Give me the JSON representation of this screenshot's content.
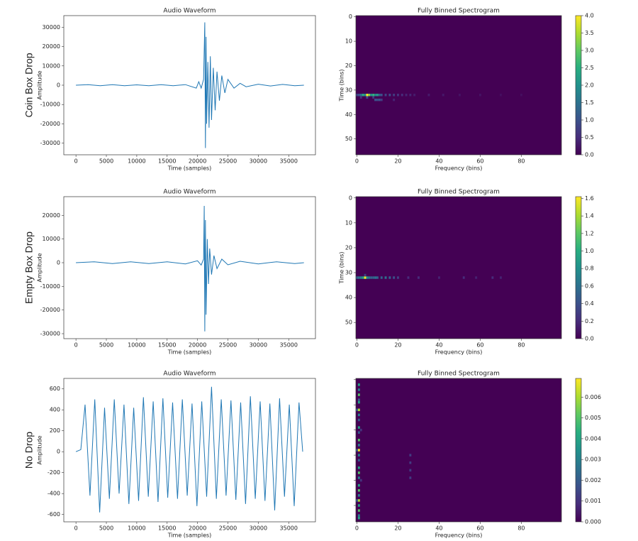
{
  "row_labels": [
    "Coin Box Drop",
    "Empty Box Drop",
    "No Drop"
  ],
  "chart_data": [
    {
      "type": "line",
      "title": "Audio Waveform",
      "xlabel": "Time (samples)",
      "ylabel": "Amplitude",
      "color": "#1f77b4",
      "x": [
        0,
        2000,
        4000,
        6000,
        8000,
        10000,
        12000,
        14000,
        16000,
        18000,
        19800,
        20200,
        20600,
        21000,
        21200,
        21300,
        21400,
        21500,
        21700,
        21900,
        22100,
        22300,
        22600,
        22900,
        23200,
        23600,
        24000,
        24500,
        25000,
        26000,
        27000,
        28000,
        30000,
        32000,
        34000,
        36000,
        37500
      ],
      "values": [
        0,
        300,
        -300,
        250,
        -300,
        200,
        -300,
        300,
        -250,
        300,
        -1500,
        1800,
        -1500,
        3000,
        32500,
        -32500,
        25000,
        -20000,
        12000,
        -22000,
        15000,
        -18000,
        9000,
        -13000,
        7000,
        -8000,
        5000,
        -4000,
        3000,
        -1500,
        1000,
        -800,
        500,
        -400,
        400,
        -300,
        0
      ],
      "xlim": [
        -2000,
        39400
      ],
      "ylim": [
        -36000,
        36000
      ],
      "xticks": [
        0,
        5000,
        10000,
        15000,
        20000,
        25000,
        30000,
        35000
      ],
      "yticks": [
        -30000,
        -20000,
        -10000,
        0,
        10000,
        20000,
        30000
      ]
    },
    {
      "type": "heatmap",
      "title": "Fully Binned Spectrogram",
      "xlabel": "Frequency (bins)",
      "ylabel": "Time (bins)",
      "colormap": "viridis",
      "x": [
        0,
        1,
        2,
        3,
        4,
        5,
        6,
        7,
        8,
        9,
        10,
        11,
        12,
        14,
        16,
        18,
        20,
        22,
        24,
        26,
        28,
        35,
        42,
        50,
        60,
        70,
        80,
        2,
        5,
        8,
        9,
        10,
        11,
        12,
        18
      ],
      "y": [
        32,
        32,
        32,
        32,
        32,
        32,
        32,
        32,
        32,
        32,
        32,
        32,
        32,
        32,
        32,
        32,
        32,
        32,
        32,
        32,
        32,
        32,
        32,
        32,
        32,
        32,
        32,
        33,
        33,
        33,
        34,
        34,
        34,
        34,
        34
      ],
      "values": [
        0.8,
        1.0,
        1.5,
        2.5,
        1.8,
        4.0,
        3.2,
        2.0,
        2.6,
        1.8,
        2.2,
        1.2,
        1.0,
        0.8,
        0.9,
        0.7,
        0.6,
        0.5,
        0.4,
        0.4,
        0.3,
        0.3,
        0.25,
        0.2,
        0.2,
        0.15,
        0.15,
        0.6,
        1.0,
        0.7,
        1.0,
        0.9,
        1.0,
        0.7,
        0.4
      ],
      "xlim": [
        -0.5,
        99.5
      ],
      "ylim": [
        56.5,
        -0.5
      ],
      "xticks": [
        0,
        20,
        40,
        60,
        80
      ],
      "yticks": [
        0,
        10,
        20,
        30,
        40,
        50
      ],
      "clim": [
        0,
        4.0
      ],
      "cticks": [
        {
          "value": 0,
          "label": "0.0"
        },
        {
          "value": 0.5,
          "label": "0.5"
        },
        {
          "value": 1,
          "label": "1.0"
        },
        {
          "value": 1.5,
          "label": "1.5"
        },
        {
          "value": 2,
          "label": "2.0"
        },
        {
          "value": 2.5,
          "label": "2.5"
        },
        {
          "value": 3,
          "label": "3.0"
        },
        {
          "value": 3.5,
          "label": "3.5"
        },
        {
          "value": 4,
          "label": "4.0"
        }
      ]
    },
    {
      "type": "line",
      "title": "Audio Waveform",
      "xlabel": "Time (samples)",
      "ylabel": "Amplitude",
      "color": "#1f77b4",
      "x": [
        0,
        3000,
        6000,
        9000,
        12000,
        15000,
        18000,
        20000,
        20600,
        21000,
        21100,
        21200,
        21300,
        21400,
        21600,
        21800,
        22000,
        22300,
        22700,
        23200,
        24000,
        25000,
        27000,
        30000,
        33000,
        36000,
        37500
      ],
      "values": [
        0,
        400,
        -400,
        400,
        -400,
        400,
        -500,
        800,
        -1000,
        1500,
        24000,
        -29000,
        18000,
        -22000,
        10000,
        -9000,
        6000,
        -5000,
        3000,
        -2500,
        1500,
        -900,
        600,
        -500,
        400,
        -400,
        0
      ],
      "xlim": [
        -2000,
        39400
      ],
      "ylim": [
        -32100,
        27900
      ],
      "xticks": [
        0,
        5000,
        10000,
        15000,
        20000,
        25000,
        30000,
        35000
      ],
      "yticks": [
        -30000,
        -20000,
        -10000,
        0,
        10000,
        20000
      ]
    },
    {
      "type": "heatmap",
      "title": "Fully Binned Spectrogram",
      "xlabel": "Frequency (bins)",
      "ylabel": "Time (bins)",
      "colormap": "viridis",
      "x": [
        0,
        1,
        2,
        3,
        4,
        5,
        6,
        7,
        8,
        9,
        10,
        12,
        14,
        16,
        18,
        20,
        25,
        30,
        40,
        52,
        58,
        66,
        70,
        4
      ],
      "y": [
        32,
        32,
        32,
        32,
        32,
        32,
        32,
        32,
        32,
        32,
        32,
        32,
        32,
        32,
        32,
        32,
        32,
        32,
        32,
        32,
        32,
        32,
        32,
        31
      ],
      "values": [
        0.5,
        0.6,
        0.7,
        0.9,
        1.6,
        0.8,
        0.6,
        0.5,
        0.5,
        0.6,
        0.5,
        0.5,
        0.6,
        0.5,
        0.4,
        0.3,
        0.2,
        0.2,
        0.15,
        0.2,
        0.15,
        0.2,
        0.15,
        0.3
      ],
      "xlim": [
        -0.5,
        99.5
      ],
      "ylim": [
        56.5,
        -0.5
      ],
      "xticks": [
        0,
        20,
        40,
        60,
        80
      ],
      "yticks": [
        0,
        10,
        20,
        30,
        40,
        50
      ],
      "clim": [
        0,
        1.62
      ],
      "cticks": [
        {
          "value": 0,
          "label": "0.0"
        },
        {
          "value": 0.2,
          "label": "0.2"
        },
        {
          "value": 0.4,
          "label": "0.4"
        },
        {
          "value": 0.6,
          "label": "0.6"
        },
        {
          "value": 0.8,
          "label": "0.8"
        },
        {
          "value": 1,
          "label": "1.0"
        },
        {
          "value": 1.2,
          "label": "1.2"
        },
        {
          "value": 1.4,
          "label": "1.4"
        },
        {
          "value": 1.6,
          "label": "1.6"
        }
      ]
    },
    {
      "type": "line",
      "title": "Audio Waveform",
      "xlabel": "Time (samples)",
      "ylabel": "Amplitude",
      "color": "#1f77b4",
      "x": [
        0,
        800,
        1500,
        2300,
        3100,
        3900,
        4700,
        5500,
        6300,
        7100,
        7900,
        8700,
        9500,
        10300,
        11100,
        11900,
        12700,
        13500,
        14300,
        15100,
        15900,
        16700,
        17500,
        18300,
        19100,
        19900,
        20700,
        21500,
        22300,
        23100,
        23900,
        24700,
        25500,
        26300,
        27100,
        27900,
        28700,
        29500,
        30300,
        31100,
        31900,
        32700,
        33500,
        34300,
        35100,
        35900,
        36700,
        37300
      ],
      "values": [
        0,
        20,
        450,
        -420,
        500,
        -580,
        420,
        -450,
        500,
        -400,
        450,
        -500,
        420,
        -470,
        520,
        -430,
        480,
        -480,
        510,
        -440,
        470,
        -450,
        500,
        -420,
        460,
        -520,
        480,
        -430,
        620,
        -450,
        500,
        -420,
        490,
        -460,
        470,
        -500,
        530,
        -450,
        480,
        -470,
        460,
        -560,
        510,
        -430,
        450,
        -520,
        470,
        0
      ],
      "xlim": [
        -2000,
        39400
      ],
      "ylim": [
        -670,
        700
      ],
      "xticks": [
        0,
        5000,
        10000,
        15000,
        20000,
        25000,
        30000,
        35000
      ],
      "yticks": [
        -600,
        -400,
        -200,
        0,
        200,
        400,
        600
      ]
    },
    {
      "type": "heatmap",
      "title": "Fully Binned Spectrogram",
      "xlabel": "Frequency (bins)",
      "colormap": "viridis",
      "ytick_labels": false,
      "x": [
        1,
        1,
        1,
        1,
        1,
        1,
        1,
        1,
        1,
        1,
        1,
        1,
        1,
        1,
        1,
        1,
        1,
        1,
        1,
        1,
        1,
        1,
        1,
        1,
        1,
        1,
        0,
        0,
        0,
        2,
        2,
        26,
        26,
        26,
        26
      ],
      "y": [
        2,
        4,
        6,
        8,
        9,
        12,
        14,
        16,
        19,
        21,
        24,
        26,
        28,
        30,
        32,
        35,
        37,
        39,
        42,
        44,
        46,
        48,
        50,
        52,
        54,
        55,
        12,
        28,
        48,
        20,
        40,
        30,
        33,
        36,
        39
      ],
      "values": [
        0.004,
        0.003,
        0.005,
        0.002,
        0.004,
        0.006,
        0.003,
        0.002,
        0.004,
        0.002,
        0.005,
        0.003,
        0.0068,
        0.003,
        0.002,
        0.004,
        0.005,
        0.003,
        0.004,
        0.005,
        0.003,
        0.006,
        0.004,
        0.005,
        0.003,
        0.004,
        0.002,
        0.002,
        0.002,
        0.001,
        0.001,
        0.0012,
        0.0012,
        0.0012,
        0.0012
      ],
      "xlim": [
        -0.5,
        99.5
      ],
      "ylim": [
        56.5,
        -0.5
      ],
      "xticks": [
        0,
        20,
        40,
        60,
        80
      ],
      "yticks": [
        0,
        10,
        20,
        30,
        40,
        50
      ],
      "clim": [
        0,
        0.0069
      ],
      "cticks": [
        {
          "value": 0,
          "label": "0.000"
        },
        {
          "value": 0.001,
          "label": "0.001"
        },
        {
          "value": 0.002,
          "label": "0.002"
        },
        {
          "value": 0.003,
          "label": "0.003"
        },
        {
          "value": 0.004,
          "label": "0.004"
        },
        {
          "value": 0.005,
          "label": "0.005"
        },
        {
          "value": 0.006,
          "label": "0.006"
        }
      ]
    }
  ]
}
